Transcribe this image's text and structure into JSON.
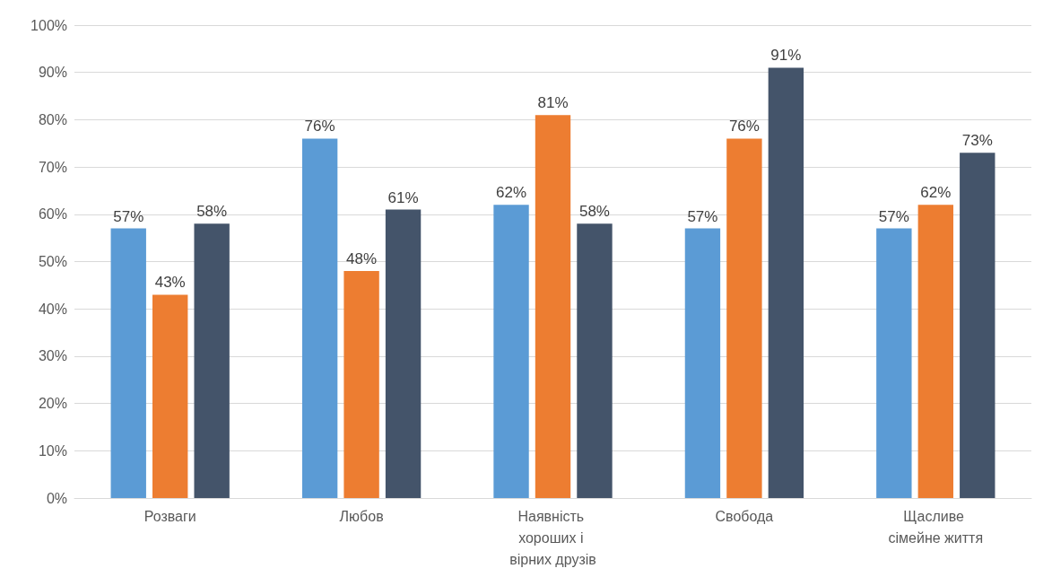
{
  "chart_data": {
    "type": "bar",
    "categories": [
      "Розваги",
      "Любов",
      "Наявність хороших і вірних друзів",
      "Свобода",
      "Щасливе сімейне життя"
    ],
    "series": [
      {
        "color": "#5b9bd5",
        "values": [
          57,
          76,
          62,
          57,
          57
        ],
        "value_labels": [
          "57%",
          "76%",
          "62%",
          "57%",
          "57%"
        ]
      },
      {
        "color": "#ed7d31",
        "values": [
          43,
          48,
          81,
          76,
          62
        ],
        "value_labels": [
          "43%",
          "48%",
          "81%",
          "76%",
          "62%"
        ]
      },
      {
        "color": "#44546a",
        "values": [
          58,
          61,
          58,
          91,
          73
        ],
        "value_labels": [
          "58%",
          "61%",
          "58%",
          "91%",
          "73%"
        ]
      }
    ],
    "ylim": [
      0,
      100
    ],
    "yticks": [
      {
        "value": 0,
        "label": "0%"
      },
      {
        "value": 10,
        "label": "10%"
      },
      {
        "value": 20,
        "label": "20%"
      },
      {
        "value": 30,
        "label": "30%"
      },
      {
        "value": 40,
        "label": "40%"
      },
      {
        "value": 50,
        "label": "50%"
      },
      {
        "value": 60,
        "label": "60%"
      },
      {
        "value": 70,
        "label": "70%"
      },
      {
        "value": 80,
        "label": "80%"
      },
      {
        "value": 90,
        "label": "90%"
      },
      {
        "value": 100,
        "label": "100%"
      }
    ],
    "grid": "y"
  }
}
